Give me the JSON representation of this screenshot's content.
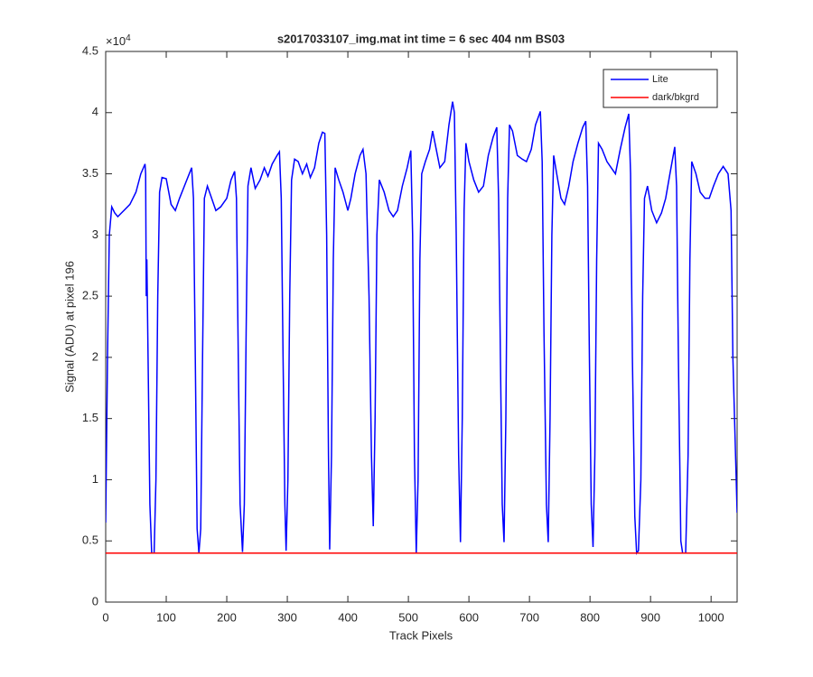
{
  "chart_data": {
    "type": "line",
    "title": "s2017033107_img.mat int time = 6 sec  404 nm BS03",
    "xlabel": "Track Pixels",
    "ylabel": "Signal (ADU) at pixel 196",
    "y_multiplier": {
      "base": "×10",
      "power": "4"
    },
    "xlim": [
      0,
      1043
    ],
    "ylim": [
      0,
      45000
    ],
    "xticks": [
      0,
      100,
      200,
      300,
      400,
      500,
      600,
      700,
      800,
      900,
      1000
    ],
    "yticks": [
      0,
      {
        "value": 5000,
        "label": "0.5"
      },
      {
        "value": 10000,
        "label": "1"
      },
      {
        "value": 15000,
        "label": "1.5"
      },
      {
        "value": 20000,
        "label": "2"
      },
      {
        "value": 25000,
        "label": "2.5"
      },
      {
        "value": 30000,
        "label": "3"
      },
      {
        "value": 35000,
        "label": "3.5"
      },
      {
        "value": 40000,
        "label": "4"
      },
      {
        "value": 45000,
        "label": "4.5"
      }
    ],
    "grid": false,
    "legend_position": "northeast",
    "series": [
      {
        "name": "Lite",
        "color": "#0000ff",
        "x": [
          0,
          3,
          6,
          10,
          15,
          20,
          30,
          40,
          50,
          58,
          65,
          66,
          67,
          68,
          70,
          73,
          76,
          80,
          83,
          86,
          89,
          93,
          100,
          108,
          115,
          122,
          130,
          138,
          142,
          145,
          148,
          151,
          154,
          157,
          160,
          163,
          168,
          175,
          182,
          190,
          200,
          207,
          213,
          216,
          219,
          222,
          226,
          229,
          232,
          235,
          240,
          247,
          255,
          262,
          268,
          275,
          283,
          287,
          290,
          293,
          296,
          298,
          301,
          304,
          307,
          312,
          318,
          325,
          332,
          338,
          345,
          352,
          358,
          362,
          365,
          368,
          370,
          373,
          376,
          379,
          385,
          392,
          400,
          405,
          412,
          420,
          425,
          430,
          435,
          439,
          442,
          445,
          448,
          452,
          460,
          468,
          475,
          482,
          490,
          498,
          504,
          507,
          510,
          513,
          516,
          519,
          522,
          528,
          535,
          540,
          546,
          552,
          560,
          567,
          573,
          576,
          579,
          583,
          586,
          589,
          592,
          595,
          600,
          608,
          616,
          624,
          632,
          640,
          646,
          649,
          652,
          655,
          658,
          661,
          664,
          667,
          672,
          680,
          688,
          695,
          703,
          710,
          718,
          721,
          724,
          728,
          731,
          734,
          737,
          740,
          745,
          752,
          758,
          765,
          772,
          780,
          788,
          793,
          796,
          799,
          802,
          805,
          808,
          811,
          814,
          820,
          828,
          835,
          842,
          850,
          858,
          864,
          867,
          870,
          874,
          877,
          880,
          884,
          887,
          890,
          895,
          902,
          910,
          918,
          925,
          932,
          940,
          943,
          946,
          950,
          953,
          958,
          962,
          965,
          968,
          975,
          982,
          990,
          997,
          1004,
          1012,
          1020,
          1028,
          1033,
          1036,
          1043
        ],
        "values": [
          6500,
          20000,
          30000,
          32300,
          31800,
          31500,
          32000,
          32500,
          33500,
          35000,
          35800,
          35000,
          25000,
          28000,
          20000,
          8000,
          4000,
          4000,
          10000,
          25000,
          33500,
          34700,
          34600,
          32500,
          32000,
          33000,
          34000,
          35000,
          35500,
          33000,
          20000,
          6000,
          4000,
          6000,
          20000,
          33000,
          34000,
          33000,
          32000,
          32300,
          33000,
          34500,
          35200,
          33000,
          20000,
          8000,
          4100,
          8000,
          22000,
          34000,
          35500,
          33800,
          34500,
          35500,
          34800,
          35800,
          36500,
          36800,
          33000,
          20000,
          8000,
          4200,
          10000,
          25000,
          34500,
          36200,
          36000,
          35000,
          35800,
          34700,
          35500,
          37500,
          38400,
          38300,
          30000,
          12000,
          4300,
          12000,
          28000,
          35500,
          34500,
          33500,
          32000,
          33000,
          35000,
          36500,
          37000,
          35000,
          25000,
          12000,
          6200,
          15000,
          30000,
          34500,
          33500,
          32000,
          31500,
          32000,
          34000,
          35500,
          36900,
          30000,
          12000,
          4000,
          10000,
          28000,
          35000,
          36000,
          37000,
          38500,
          37000,
          35500,
          36000,
          39000,
          40900,
          40000,
          30000,
          12000,
          4900,
          15000,
          32000,
          37500,
          36000,
          34500,
          33500,
          34000,
          36500,
          38000,
          38800,
          33000,
          20000,
          8000,
          4900,
          15000,
          33000,
          39000,
          38500,
          36500,
          36200,
          36000,
          37000,
          39000,
          40100,
          36000,
          22000,
          8000,
          4900,
          15000,
          30000,
          36500,
          35000,
          33000,
          32500,
          34000,
          36000,
          37500,
          38800,
          39300,
          34000,
          20000,
          8000,
          4500,
          12000,
          28000,
          37500,
          37000,
          36000,
          35500,
          35000,
          37000,
          38800,
          39900,
          35000,
          20000,
          7000,
          4000,
          4200,
          10000,
          25000,
          33000,
          34000,
          32000,
          31000,
          31800,
          33000,
          35000,
          37200,
          34000,
          20000,
          5000,
          4000,
          4000,
          12000,
          28000,
          36000,
          35000,
          33500,
          33000,
          33000,
          34000,
          35000,
          35600,
          35000,
          32000,
          20000,
          7300
        ]
      },
      {
        "name": "dark/bkgrd",
        "color": "#ff0000",
        "x": [
          0,
          1043
        ],
        "values": [
          4000,
          4000
        ]
      }
    ]
  }
}
